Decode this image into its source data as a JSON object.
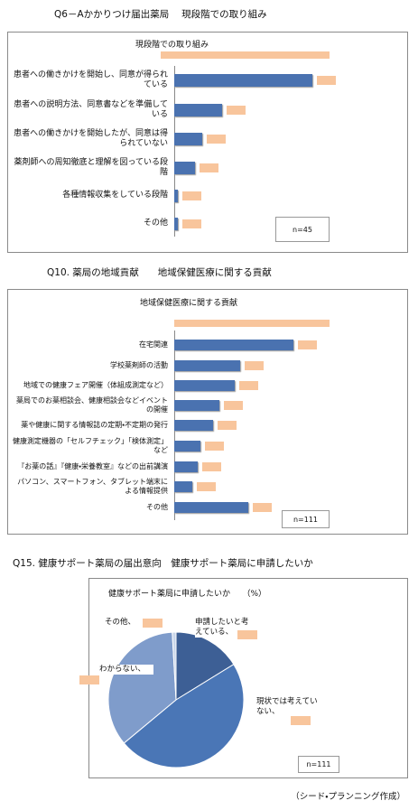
{
  "chart_data": [
    {
      "type": "bar",
      "section_title": "Q6－Aかかりつけ届出薬局　 現段階での取り組み",
      "title": "現段階での取り組み",
      "categories": [
        "患者への働きかけを開始し、同意が得られている",
        "患者への説明方法、同意書などを準備している",
        "患者への働きかけを開始したが、同意は得られていない",
        "薬剤師への周知徹底と理解を図っている段階",
        "各種情報収集をしている段階",
        "その他"
      ],
      "values": [
        88.9,
        31.1,
        17.8,
        13.3,
        2.2,
        2.2
      ],
      "color": "#4a72b0",
      "note": "n=45"
    },
    {
      "type": "bar",
      "section_title": "Q10. 薬局の地域貢献　　地域保健医療に関する貢献",
      "title": "地域保健医療に関する貢献",
      "categories": [
        "在宅関連",
        "学校薬剤師の活動",
        "地域での健康フェア開催（体組成測定など）",
        "薬局でのお薬相談会、健康相談会などイベントの開催",
        "薬や健康に関する情報誌の定期・不定期の発行",
        "健康測定機器の「セルフチェック」「検体測定」など",
        "『お薬の話』『健康・栄養教室』などの出前講演",
        "パソコン、スマートフォン、タブレット端末による情報提供",
        "その他"
      ],
      "values": [
        76.6,
        42.3,
        38.7,
        28.8,
        25.2,
        17.1,
        15.3,
        11.7,
        47.7
      ],
      "color": "#4a72b0",
      "note": "n=111"
    },
    {
      "type": "pie",
      "section_title": "Q15. 健康サポート薬局の届出意向　健康サポート薬局に申請したいか",
      "title": "健康サポート薬局に申請したいか　　（%）",
      "categories": [
        "申請したいと考えている、",
        "現状では考えていない、",
        "わからない、",
        "その他、"
      ],
      "values": [
        16.2,
        47.7,
        35.1,
        0.9
      ],
      "colors": [
        "#3d5f95",
        "#4a76b6",
        "#7f9ccb",
        "#c9d6ea"
      ],
      "note": "n=111"
    }
  ],
  "source": "（シード・プランニング作成）"
}
